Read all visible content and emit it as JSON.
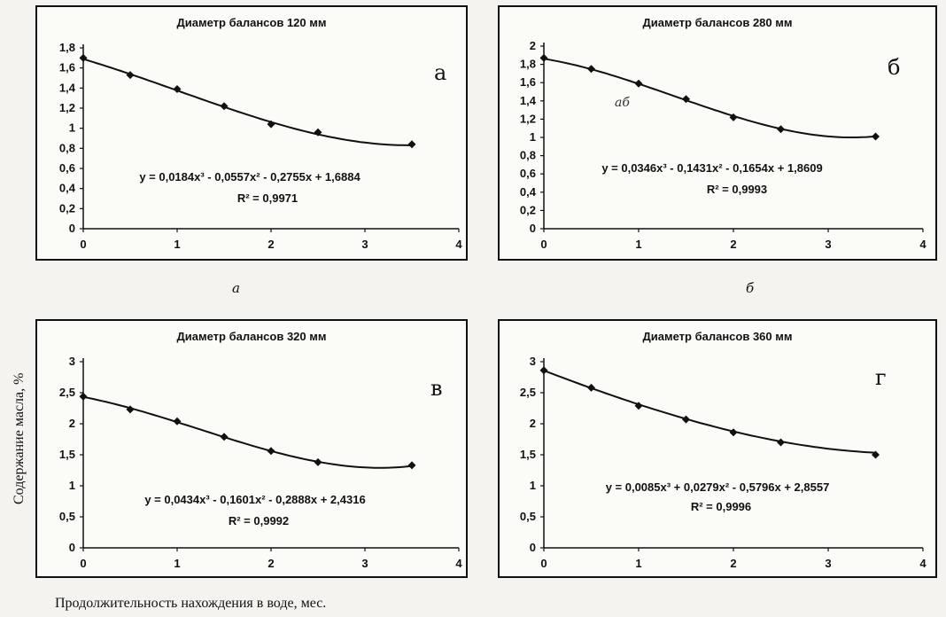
{
  "figure": {
    "ylabel": "Содержание масла, %",
    "xlabel": "Продолжительность нахождения в воде, мес.",
    "sublabels": [
      "а",
      "б"
    ]
  },
  "chart_data": [
    {
      "type": "scatter",
      "title": "Диаметр балансов 120 мм",
      "panel_letter": "а",
      "x": [
        0,
        0.5,
        1,
        1.5,
        2,
        2.5,
        3.5
      ],
      "y": [
        1.7,
        1.53,
        1.39,
        1.22,
        1.04,
        0.96,
        0.84
      ],
      "trendline": {
        "coef": [
          0.0184,
          -0.0557,
          -0.2755,
          1.6884
        ]
      },
      "xlim": [
        0,
        4
      ],
      "xticks": [
        "0",
        "1",
        "2",
        "3",
        "4"
      ],
      "ylim": [
        0,
        1.8
      ],
      "yticks": [
        "0",
        "0,2",
        "0,4",
        "0,6",
        "0,8",
        "1",
        "1,2",
        "1,4",
        "1,6",
        "1,8"
      ],
      "equation": "y = 0,0184x³ - 0,0557x² - 0,2755x + 1,6884",
      "r2": "R² = 0,9971"
    },
    {
      "type": "scatter",
      "title": "Диаметр балансов 280 мм",
      "panel_letter": "б",
      "note": "аб",
      "x": [
        0,
        0.5,
        1,
        1.5,
        2,
        2.5,
        3.5
      ],
      "y": [
        1.87,
        1.75,
        1.59,
        1.42,
        1.22,
        1.09,
        1.01
      ],
      "trendline": {
        "coef": [
          0.0346,
          -0.1431,
          -0.1654,
          1.8609
        ]
      },
      "xlim": [
        0,
        4
      ],
      "xticks": [
        "0",
        "1",
        "2",
        "3",
        "4"
      ],
      "ylim": [
        0,
        2
      ],
      "yticks": [
        "0",
        "0,2",
        "0,4",
        "0,6",
        "0,8",
        "1",
        "1,2",
        "1,4",
        "1,6",
        "1,8",
        "2"
      ],
      "equation": "y = 0,0346x³ - 0,1431x² - 0,1654x + 1,8609",
      "r2": "R² = 0,9993"
    },
    {
      "type": "scatter",
      "title": "Диаметр балансов 320 мм",
      "panel_letter": "в",
      "x": [
        0,
        0.5,
        1,
        1.5,
        2,
        2.5,
        3.5
      ],
      "y": [
        2.44,
        2.23,
        2.04,
        1.79,
        1.56,
        1.38,
        1.33
      ],
      "trendline": {
        "coef": [
          0.0434,
          -0.1601,
          -0.2888,
          2.4316
        ]
      },
      "xlim": [
        0,
        4
      ],
      "xticks": [
        "0",
        "1",
        "2",
        "3",
        "4"
      ],
      "ylim": [
        0,
        3
      ],
      "yticks": [
        "0",
        "0,5",
        "1",
        "1,5",
        "2",
        "2,5",
        "3"
      ],
      "equation": "y = 0,0434x³ - 0,1601x² - 0,2888x + 2,4316",
      "r2": "R² = 0,9992"
    },
    {
      "type": "scatter",
      "title": "Диаметр балансов 360 мм",
      "panel_letter": "г",
      "x": [
        0,
        0.5,
        1,
        1.5,
        2,
        2.5,
        3.5
      ],
      "y": [
        2.86,
        2.58,
        2.29,
        2.07,
        1.86,
        1.7,
        1.5
      ],
      "trendline": {
        "coef": [
          0.0085,
          0.0279,
          -0.5796,
          2.8557
        ]
      },
      "xlim": [
        0,
        4
      ],
      "xticks": [
        "0",
        "1",
        "2",
        "3",
        "4"
      ],
      "ylim": [
        0,
        3
      ],
      "yticks": [
        "0",
        "0,5",
        "1",
        "1,5",
        "2",
        "2,5",
        "3"
      ],
      "equation": "y = 0,0085x³ + 0,0279x² - 0,5796x + 2,8557",
      "r2": "R² = 0,9996"
    }
  ]
}
